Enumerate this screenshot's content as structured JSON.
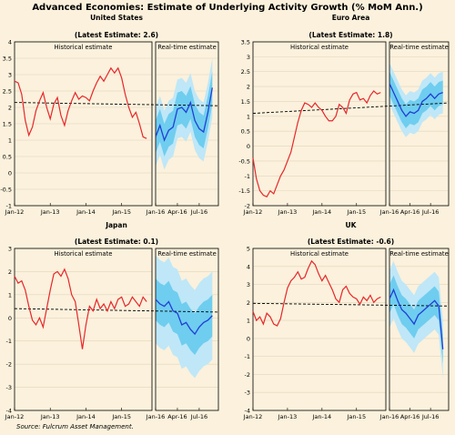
{
  "title": "Advanced Economies: Estimate of Underlying Activity Growth (% MoM Ann.)",
  "source": "Source: Fulcrum Asset Management.",
  "colors": {
    "historical": "#e8262a",
    "realtime": "#1f3fd6",
    "band_outer": "#bfe7f7",
    "band_inner": "#6fcdef",
    "trend": "#000000",
    "background": "#fbf1dc",
    "grid": "#e2d6bd"
  },
  "chart_data": [
    {
      "type": "line",
      "country": "United States",
      "latest_label": "(Latest Estimate: 2.6)",
      "left_panel_label": "Historical estimate",
      "right_panel_label": "Real-time estimate",
      "ylim": [
        -1,
        4
      ],
      "yticks": [
        -1,
        -0.5,
        0,
        0.5,
        1,
        1.5,
        2,
        2.5,
        3,
        3.5,
        4
      ],
      "grid": true,
      "xticks_hist": [
        "Jan-12",
        "Jan-13",
        "Jan-14",
        "Jan-15"
      ],
      "xticks_rt": [
        "Jan-16",
        "Apr-16",
        "Jul-16"
      ],
      "historical_x": [
        2012.0,
        2012.1,
        2012.2,
        2012.3,
        2012.4,
        2012.5,
        2012.6,
        2012.7,
        2012.8,
        2012.9,
        2013.0,
        2013.1,
        2013.2,
        2013.3,
        2013.4,
        2013.5,
        2013.6,
        2013.7,
        2013.8,
        2013.9,
        2014.0,
        2014.1,
        2014.2,
        2014.3,
        2014.4,
        2014.5,
        2014.6,
        2014.7,
        2014.8,
        2014.9,
        2015.0,
        2015.1,
        2015.2,
        2015.3,
        2015.4,
        2015.5,
        2015.6,
        2015.7
      ],
      "historical_y": [
        2.8,
        2.75,
        2.4,
        1.6,
        1.15,
        1.4,
        1.9,
        2.2,
        2.45,
        2.0,
        1.65,
        2.1,
        2.3,
        1.75,
        1.45,
        1.9,
        2.2,
        2.45,
        2.25,
        2.35,
        2.3,
        2.2,
        2.5,
        2.75,
        2.95,
        2.8,
        3.0,
        3.2,
        3.05,
        3.2,
        2.9,
        2.4,
        2.0,
        1.7,
        1.85,
        1.5,
        1.1,
        1.05
      ],
      "trend_start": 2.15,
      "trend_end": 2.05,
      "realtime_x": [
        2016.0,
        2016.05,
        2016.1,
        2016.15,
        2016.2,
        2016.25,
        2016.3,
        2016.35,
        2016.4,
        2016.45,
        2016.5,
        2016.55,
        2016.6,
        2016.65
      ],
      "realtime_y": [
        1.1,
        1.45,
        1.0,
        1.3,
        1.4,
        1.95,
        2.0,
        1.85,
        2.15,
        1.6,
        1.35,
        1.25,
        1.85,
        2.6
      ],
      "band_inner_half": 0.5,
      "band_outer_half": 0.9
    },
    {
      "type": "line",
      "country": "Euro Area",
      "latest_label": "(Latest Estimate: 1.8)",
      "left_panel_label": "Historical estimate",
      "right_panel_label": "Real-time estimate",
      "ylim": [
        -2,
        3.5
      ],
      "yticks": [
        -2,
        -1.5,
        -1,
        -0.5,
        0,
        0.5,
        1,
        1.5,
        2,
        2.5,
        3,
        3.5
      ],
      "grid": true,
      "xticks_hist": [
        "Jan-12",
        "Jan-13",
        "Jan-14",
        "Jan-15"
      ],
      "xticks_rt": [
        "Jan-16",
        "Apr-16",
        "Jul-16"
      ],
      "historical_x": [
        2012.0,
        2012.1,
        2012.2,
        2012.3,
        2012.4,
        2012.5,
        2012.6,
        2012.7,
        2012.8,
        2012.9,
        2013.0,
        2013.1,
        2013.2,
        2013.3,
        2013.4,
        2013.5,
        2013.6,
        2013.7,
        2013.8,
        2013.9,
        2014.0,
        2014.1,
        2014.2,
        2014.3,
        2014.4,
        2014.5,
        2014.6,
        2014.7,
        2014.8,
        2014.9,
        2015.0,
        2015.1,
        2015.2,
        2015.3,
        2015.4,
        2015.5,
        2015.6,
        2015.7
      ],
      "historical_y": [
        -0.4,
        -1.1,
        -1.5,
        -1.65,
        -1.7,
        -1.5,
        -1.6,
        -1.3,
        -1.0,
        -0.8,
        -0.5,
        -0.2,
        0.3,
        0.8,
        1.2,
        1.45,
        1.4,
        1.3,
        1.45,
        1.3,
        1.2,
        1.0,
        0.85,
        0.85,
        1.0,
        1.4,
        1.3,
        1.1,
        1.55,
        1.75,
        1.8,
        1.55,
        1.6,
        1.45,
        1.7,
        1.85,
        1.75,
        1.8
      ],
      "trend_start": 1.1,
      "trend_end": 1.45,
      "realtime_x": [
        2016.0,
        2016.05,
        2016.1,
        2016.15,
        2016.2,
        2016.25,
        2016.3,
        2016.35,
        2016.4,
        2016.45,
        2016.5,
        2016.55,
        2016.6,
        2016.65
      ],
      "realtime_y": [
        2.1,
        1.8,
        1.5,
        1.2,
        1.0,
        1.15,
        1.1,
        1.2,
        1.5,
        1.6,
        1.75,
        1.6,
        1.75,
        1.8
      ],
      "band_inner_half": 0.4,
      "band_outer_half": 0.7
    },
    {
      "type": "line",
      "country": "Japan",
      "latest_label": "(Latest Estimate: 0.1)",
      "left_panel_label": "Historical estimate",
      "right_panel_label": "Real-time estimate",
      "ylim": [
        -4,
        3
      ],
      "yticks": [
        -4,
        -3,
        -2,
        -1,
        0,
        1,
        2,
        3
      ],
      "grid": true,
      "xticks_hist": [
        "Jan-12",
        "Jan-13",
        "Jan-14",
        "Jan-15"
      ],
      "xticks_rt": [
        "Jan-16",
        "Apr-16",
        "Jul-16"
      ],
      "historical_x": [
        2012.0,
        2012.1,
        2012.2,
        2012.3,
        2012.4,
        2012.5,
        2012.6,
        2012.7,
        2012.8,
        2012.9,
        2013.0,
        2013.1,
        2013.2,
        2013.3,
        2013.4,
        2013.5,
        2013.6,
        2013.7,
        2013.8,
        2013.9,
        2014.0,
        2014.1,
        2014.2,
        2014.3,
        2014.4,
        2014.5,
        2014.6,
        2014.7,
        2014.8,
        2014.9,
        2015.0,
        2015.1,
        2015.2,
        2015.3,
        2015.4,
        2015.5,
        2015.6,
        2015.7
      ],
      "historical_y": [
        1.8,
        1.5,
        1.6,
        1.2,
        0.5,
        -0.1,
        -0.3,
        0.0,
        -0.4,
        0.4,
        1.2,
        1.9,
        2.0,
        1.8,
        2.1,
        1.7,
        1.0,
        0.7,
        -0.3,
        -1.35,
        -0.3,
        0.5,
        0.3,
        0.8,
        0.4,
        0.6,
        0.3,
        0.7,
        0.4,
        0.8,
        0.9,
        0.5,
        0.6,
        0.9,
        0.7,
        0.5,
        0.9,
        0.7
      ],
      "trend_start": 0.4,
      "trend_end": 0.25,
      "realtime_x": [
        2016.0,
        2016.05,
        2016.1,
        2016.15,
        2016.2,
        2016.25,
        2016.3,
        2016.35,
        2016.4,
        2016.45,
        2016.5,
        2016.55,
        2016.6,
        2016.65
      ],
      "realtime_y": [
        0.8,
        0.6,
        0.5,
        0.7,
        0.3,
        0.2,
        -0.3,
        -0.2,
        -0.5,
        -0.7,
        -0.4,
        -0.2,
        -0.1,
        0.1
      ],
      "band_inner_half": 0.9,
      "band_outer_half": 1.9
    },
    {
      "type": "line",
      "country": "UK",
      "latest_label": "(Latest Estimate: -0.6)",
      "left_panel_label": "Historical estimate",
      "right_panel_label": "Real-time estimate",
      "ylim": [
        -4,
        5
      ],
      "yticks": [
        -4,
        -3,
        -2,
        -1,
        0,
        1,
        2,
        3,
        4,
        5
      ],
      "grid": true,
      "xticks_hist": [
        "Jan-12",
        "Jan-13",
        "Jan-14",
        "Jan-15"
      ],
      "xticks_rt": [
        "Jan-16",
        "Apr-16",
        "Jul-16"
      ],
      "historical_x": [
        2012.0,
        2012.1,
        2012.2,
        2012.3,
        2012.4,
        2012.5,
        2012.6,
        2012.7,
        2012.8,
        2012.9,
        2013.0,
        2013.1,
        2013.2,
        2013.3,
        2013.4,
        2013.5,
        2013.6,
        2013.7,
        2013.8,
        2013.9,
        2014.0,
        2014.1,
        2014.2,
        2014.3,
        2014.4,
        2014.5,
        2014.6,
        2014.7,
        2014.8,
        2014.9,
        2015.0,
        2015.1,
        2015.2,
        2015.3,
        2015.4,
        2015.5,
        2015.6,
        2015.7
      ],
      "historical_y": [
        1.5,
        1.0,
        1.2,
        0.8,
        1.4,
        1.2,
        0.8,
        0.7,
        1.1,
        2.0,
        2.8,
        3.2,
        3.4,
        3.7,
        3.3,
        3.4,
        3.9,
        4.3,
        4.1,
        3.6,
        3.2,
        3.5,
        3.1,
        2.7,
        2.2,
        2.0,
        2.7,
        2.9,
        2.5,
        2.3,
        2.2,
        1.9,
        2.3,
        2.1,
        2.4,
        2.0,
        2.2,
        2.3
      ],
      "trend_start": 1.95,
      "trend_end": 1.8,
      "realtime_x": [
        2016.0,
        2016.05,
        2016.1,
        2016.15,
        2016.2,
        2016.25,
        2016.3,
        2016.35,
        2016.4,
        2016.45,
        2016.5,
        2016.55,
        2016.6,
        2016.65
      ],
      "realtime_y": [
        2.2,
        2.7,
        2.1,
        1.6,
        1.4,
        1.1,
        0.8,
        1.3,
        1.5,
        1.7,
        1.9,
        2.1,
        1.8,
        -0.6
      ],
      "band_inner_half": 0.8,
      "band_outer_half": 1.6
    }
  ]
}
